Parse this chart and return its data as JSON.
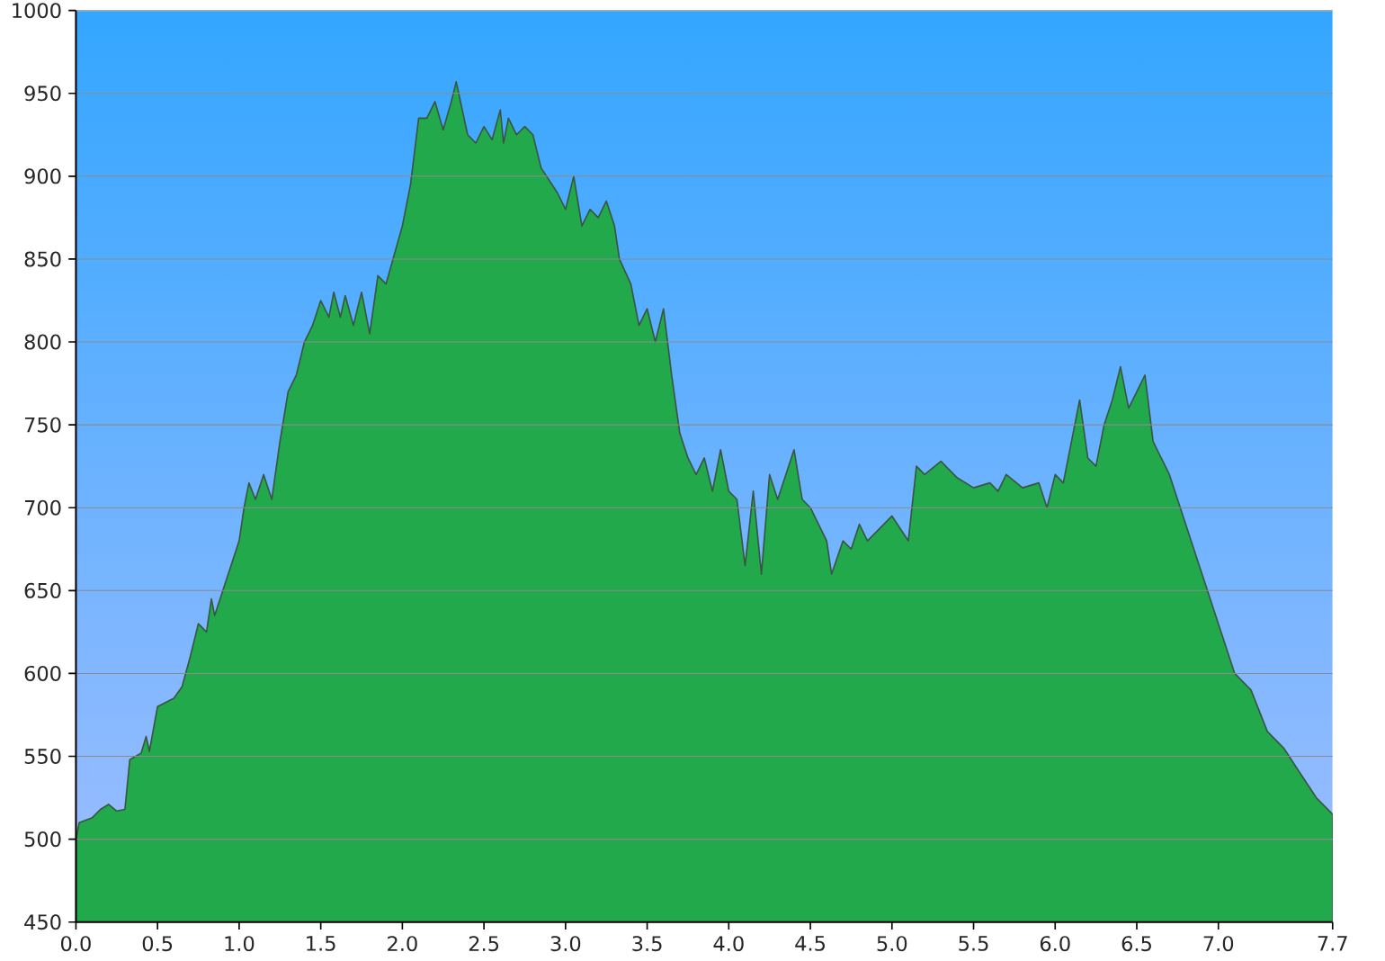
{
  "chart_data": {
    "type": "area",
    "color": "#22a94b",
    "grid": "y",
    "xlim": [
      0,
      7.7
    ],
    "ylim": [
      450,
      1000
    ],
    "xticks": [
      {
        "value": 0,
        "label": "0.0"
      },
      {
        "value": 0.5,
        "label": "0.5"
      },
      {
        "value": 1,
        "label": "1.0"
      },
      {
        "value": 1.5,
        "label": "1.5"
      },
      {
        "value": 2,
        "label": "2.0"
      },
      {
        "value": 2.5,
        "label": "2.5"
      },
      {
        "value": 3,
        "label": "3.0"
      },
      {
        "value": 3.5,
        "label": "3.5"
      },
      {
        "value": 4,
        "label": "4.0"
      },
      {
        "value": 4.5,
        "label": "4.5"
      },
      {
        "value": 5,
        "label": "5.0"
      },
      {
        "value": 5.5,
        "label": "5.5"
      },
      {
        "value": 6,
        "label": "6.0"
      },
      {
        "value": 6.5,
        "label": "6.5"
      },
      {
        "value": 7,
        "label": "7.0"
      },
      {
        "value": 7.7,
        "label": "7.7"
      }
    ],
    "yticks": [
      450,
      500,
      550,
      600,
      650,
      700,
      750,
      800,
      850,
      900,
      950,
      1000
    ],
    "x": [
      0.0,
      0.02,
      0.1,
      0.15,
      0.2,
      0.25,
      0.3,
      0.33,
      0.4,
      0.43,
      0.45,
      0.5,
      0.6,
      0.65,
      0.7,
      0.75,
      0.8,
      0.83,
      0.85,
      0.9,
      1.0,
      1.03,
      1.06,
      1.1,
      1.15,
      1.2,
      1.25,
      1.3,
      1.35,
      1.4,
      1.45,
      1.5,
      1.55,
      1.58,
      1.62,
      1.65,
      1.7,
      1.75,
      1.8,
      1.85,
      1.9,
      2.0,
      2.05,
      2.1,
      2.15,
      2.2,
      2.25,
      2.3,
      2.33,
      2.4,
      2.45,
      2.5,
      2.55,
      2.6,
      2.62,
      2.65,
      2.7,
      2.75,
      2.8,
      2.85,
      2.95,
      3.0,
      3.05,
      3.1,
      3.15,
      3.2,
      3.25,
      3.3,
      3.33,
      3.4,
      3.45,
      3.5,
      3.55,
      3.6,
      3.65,
      3.7,
      3.75,
      3.8,
      3.85,
      3.9,
      3.95,
      4.0,
      4.05,
      4.1,
      4.15,
      4.2,
      4.25,
      4.3,
      4.4,
      4.45,
      4.5,
      4.6,
      4.63,
      4.7,
      4.75,
      4.8,
      4.85,
      4.9,
      5.0,
      5.1,
      5.15,
      5.2,
      5.3,
      5.4,
      5.5,
      5.6,
      5.65,
      5.7,
      5.8,
      5.9,
      5.95,
      6.0,
      6.05,
      6.1,
      6.15,
      6.2,
      6.25,
      6.3,
      6.35,
      6.4,
      6.45,
      6.5,
      6.55,
      6.6,
      6.7,
      6.8,
      6.9,
      7.0,
      7.1,
      7.2,
      7.3,
      7.4,
      7.5,
      7.6,
      7.7
    ],
    "values": [
      500,
      510,
      513,
      518,
      521,
      517,
      518,
      548,
      552,
      562,
      553,
      580,
      585,
      592,
      610,
      630,
      625,
      645,
      635,
      650,
      680,
      700,
      715,
      705,
      720,
      705,
      740,
      770,
      780,
      800,
      810,
      825,
      815,
      830,
      815,
      828,
      810,
      830,
      805,
      840,
      835,
      870,
      895,
      935,
      935,
      945,
      928,
      945,
      957,
      925,
      920,
      930,
      922,
      940,
      920,
      935,
      925,
      930,
      925,
      905,
      890,
      880,
      900,
      870,
      880,
      875,
      885,
      870,
      850,
      835,
      810,
      820,
      800,
      820,
      780,
      745,
      730,
      720,
      730,
      710,
      735,
      710,
      705,
      665,
      710,
      660,
      720,
      705,
      735,
      705,
      700,
      680,
      660,
      680,
      675,
      690,
      680,
      685,
      695,
      680,
      725,
      720,
      728,
      718,
      712,
      715,
      710,
      720,
      712,
      715,
      700,
      720,
      715,
      740,
      765,
      730,
      725,
      750,
      765,
      785,
      760,
      770,
      780,
      740,
      720,
      690,
      660,
      630,
      600,
      590,
      565,
      555,
      540,
      525,
      515
    ]
  }
}
